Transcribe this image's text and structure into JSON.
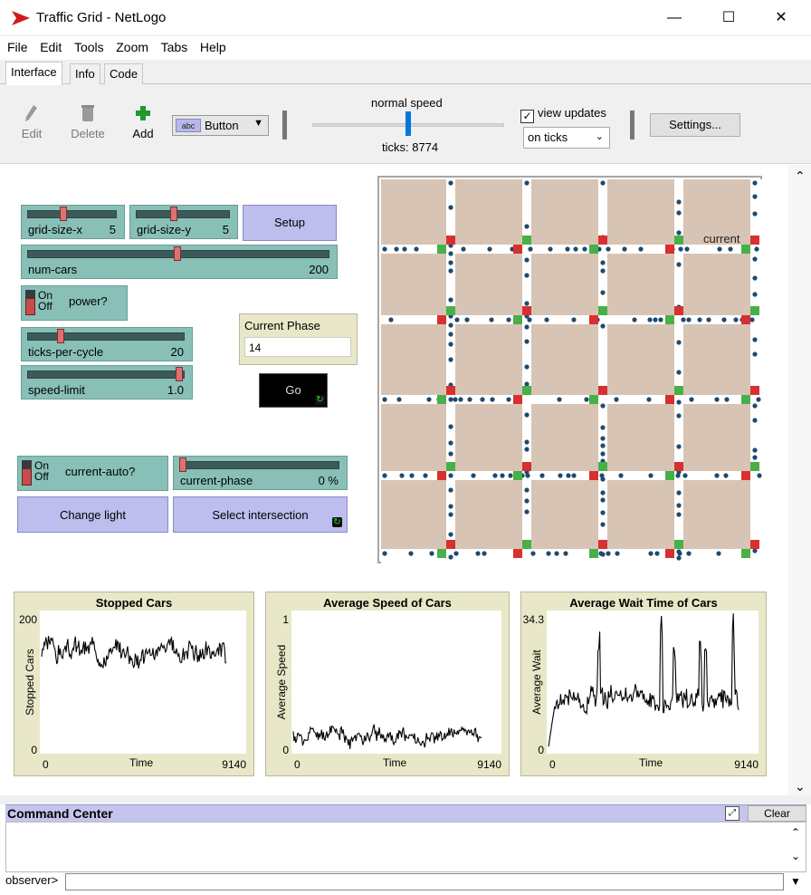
{
  "window": {
    "title": "Traffic Grid - NetLogo",
    "controls": {
      "minimize": "—",
      "maximize": "☐",
      "close": "✕"
    }
  },
  "menu": [
    "File",
    "Edit",
    "Tools",
    "Zoom",
    "Tabs",
    "Help"
  ],
  "tabs": [
    {
      "label": "Interface",
      "active": true
    },
    {
      "label": "Info",
      "active": false
    },
    {
      "label": "Code",
      "active": false
    }
  ],
  "toolbar": {
    "edit": "Edit",
    "delete": "Delete",
    "add": "Add",
    "widget_type": "Button",
    "widget_icon": "abc",
    "speed_label": "normal speed",
    "speed_fraction": 0.5,
    "ticks": "ticks: 8774",
    "view_updates_label": "view updates",
    "view_updates_checked": true,
    "update_mode": "on ticks",
    "settings": "Settings..."
  },
  "widgets": {
    "grid_size_x": {
      "label": "grid-size-x",
      "value": "5",
      "fraction": 0.4
    },
    "grid_size_y": {
      "label": "grid-size-y",
      "value": "5",
      "fraction": 0.4
    },
    "setup": "Setup",
    "num_cars": {
      "label": "num-cars",
      "value": "200",
      "fraction": 0.5
    },
    "power": {
      "label": "power?",
      "on": "On",
      "off": "Off"
    },
    "ticks_per_cycle": {
      "label": "ticks-per-cycle",
      "value": "20",
      "fraction": 0.2
    },
    "speed_limit": {
      "label": "speed-limit",
      "value": "1.0",
      "fraction": 1.0
    },
    "current_phase_monitor": {
      "label": "Current Phase",
      "value": "14"
    },
    "go": "Go",
    "current_auto": {
      "label": "current-auto?",
      "on": "On",
      "off": "Off"
    },
    "current_phase_slider": {
      "label": "current-phase",
      "value": "0 %",
      "fraction": 0.0
    },
    "change_light": "Change light",
    "select_intersection": "Select intersection"
  },
  "world": {
    "label": "current",
    "grid": 5,
    "background": "#ffffff",
    "block_color": "#d8c4b4",
    "light_red": "#d83030",
    "light_green": "#48b048",
    "car_color": "#1e4a6e"
  },
  "plots": [
    {
      "title": "Stopped Cars",
      "ylabel": "Stopped Cars",
      "xlabel": "Time",
      "xmin": "0",
      "xmax": "9140",
      "ymin": "0",
      "ymax": "200"
    },
    {
      "title": "Average Speed of Cars",
      "ylabel": "Average Speed",
      "xlabel": "Time",
      "xmin": "0",
      "xmax": "9140",
      "ymin": "0",
      "ymax": "1"
    },
    {
      "title": "Average Wait Time of Cars",
      "ylabel": "Average Wait",
      "xlabel": "Time",
      "xmin": "0",
      "xmax": "9140",
      "ymin": "0",
      "ymax": "34.3"
    }
  ],
  "command_center": {
    "title": "Command Center",
    "clear": "Clear",
    "prompt": "observer>"
  }
}
